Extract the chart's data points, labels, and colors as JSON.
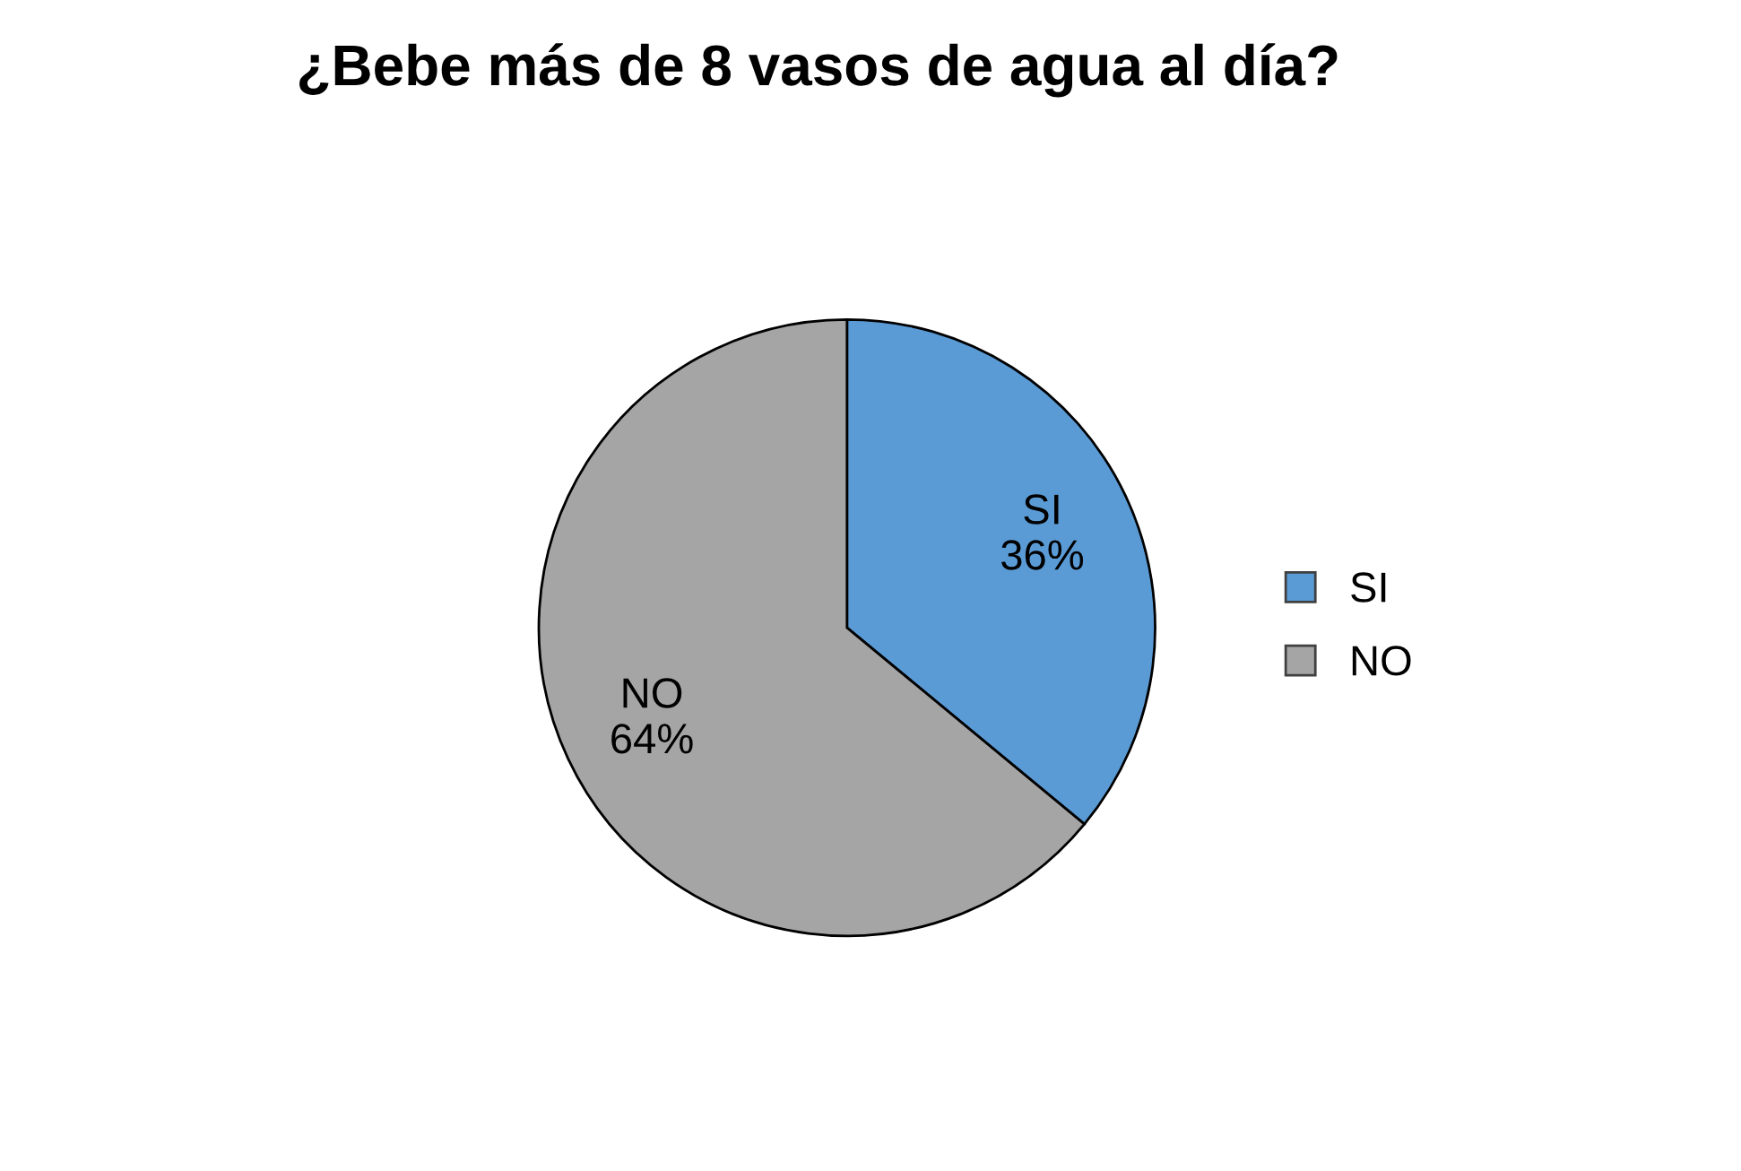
{
  "chart_data": {
    "type": "pie",
    "title": "¿Bebe más de 8 vasos de agua al día?",
    "categories": [
      "SI",
      "NO"
    ],
    "values": [
      36,
      64
    ],
    "colors": [
      "#5b9bd5",
      "#a5a5a5"
    ],
    "value_labels": [
      "36%",
      "64%"
    ],
    "legend": "right"
  }
}
